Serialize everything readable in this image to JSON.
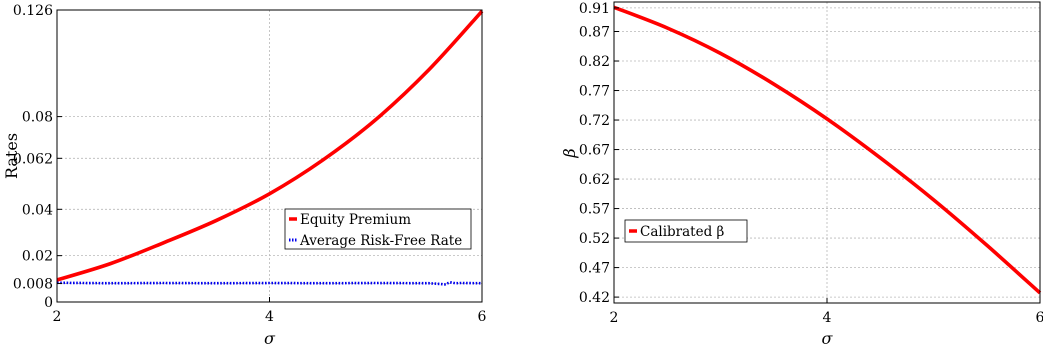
{
  "chart_data": [
    {
      "type": "line",
      "xlabel": "σ",
      "ylabel": "Rates",
      "xlim": [
        2,
        6
      ],
      "ylim": [
        0,
        0.126
      ],
      "xticks": [
        "2",
        "4",
        "6"
      ],
      "yticks": [
        "0",
        "0.008",
        "0.02",
        "0.04",
        "0.062",
        "0.08",
        "0.126"
      ],
      "grid": true,
      "legend_position": "lower-right",
      "series": [
        {
          "name": "Equity Premium",
          "color": "#ff0000",
          "style": "solid",
          "x": [
            2,
            2.5,
            3,
            3.5,
            4,
            4.5,
            5,
            5.5,
            6
          ],
          "y": [
            0.0095,
            0.0165,
            0.0255,
            0.0352,
            0.0467,
            0.0612,
            0.0787,
            0.1002,
            0.1255
          ]
        },
        {
          "name": "Average Risk-Free Rate",
          "color": "#0000ee",
          "style": "dotted",
          "x": [
            2,
            2.5,
            3,
            3.5,
            4,
            4.5,
            5,
            5.5,
            5.6,
            5.65,
            5.7,
            5.75,
            5.8,
            6
          ],
          "y": [
            0.0083,
            0.0081,
            0.0082,
            0.0081,
            0.0082,
            0.0081,
            0.0082,
            0.0081,
            0.0078,
            0.0076,
            0.0085,
            0.0081,
            0.0082,
            0.0081
          ]
        }
      ]
    },
    {
      "type": "line",
      "xlabel": "σ",
      "ylabel": "β",
      "xlim": [
        2,
        6
      ],
      "ylim": [
        0.41,
        0.92
      ],
      "xticks": [
        "2",
        "4",
        "6"
      ],
      "yticks": [
        "0.42",
        "0.47",
        "0.52",
        "0.57",
        "0.62",
        "0.67",
        "0.72",
        "0.77",
        "0.82",
        "0.87",
        "0.91"
      ],
      "grid": true,
      "legend_position": "lower-left",
      "series": [
        {
          "name": "Calibrated β",
          "color": "#ff0000",
          "style": "solid",
          "x": [
            2,
            2.5,
            3,
            3.5,
            4,
            4.5,
            5,
            5.5,
            6
          ],
          "y": [
            0.911,
            0.876,
            0.833,
            0.781,
            0.722,
            0.656,
            0.585,
            0.508,
            0.427
          ]
        }
      ]
    }
  ]
}
